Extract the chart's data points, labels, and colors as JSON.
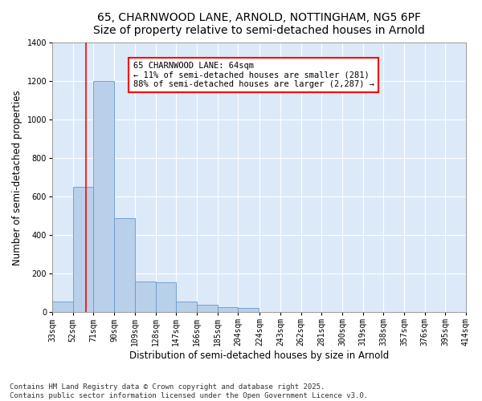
{
  "title_line1": "65, CHARNWOOD LANE, ARNOLD, NOTTINGHAM, NG5 6PF",
  "title_line2": "Size of property relative to semi-detached houses in Arnold",
  "xlabel": "Distribution of semi-detached houses by size in Arnold",
  "ylabel": "Number of semi-detached properties",
  "background_color": "#dce9f8",
  "bar_color": "#b8d0ea",
  "bar_edge_color": "#6699cc",
  "grid_color": "#ffffff",
  "bar_left_edges": [
    33,
    52,
    71,
    90,
    109,
    128,
    147,
    166,
    185,
    204,
    224,
    243,
    262,
    281,
    300,
    319,
    338,
    357,
    376,
    395
  ],
  "bar_heights": [
    55,
    650,
    1200,
    490,
    160,
    155,
    55,
    40,
    25,
    20,
    0,
    0,
    0,
    0,
    0,
    0,
    0,
    0,
    0,
    0
  ],
  "bin_width": 19,
  "x_tick_labels": [
    "33sqm",
    "52sqm",
    "71sqm",
    "90sqm",
    "109sqm",
    "128sqm",
    "147sqm",
    "166sqm",
    "185sqm",
    "204sqm",
    "224sqm",
    "243sqm",
    "262sqm",
    "281sqm",
    "300sqm",
    "319sqm",
    "338sqm",
    "357sqm",
    "376sqm",
    "395sqm",
    "414sqm"
  ],
  "x_tick_positions": [
    33,
    52,
    71,
    90,
    109,
    128,
    147,
    166,
    185,
    204,
    224,
    243,
    262,
    281,
    300,
    319,
    338,
    357,
    376,
    395,
    414
  ],
  "ylim": [
    0,
    1400
  ],
  "xlim": [
    33,
    414
  ],
  "red_line_x": 64,
  "annotation_title": "65 CHARNWOOD LANE: 64sqm",
  "annotation_line2": "← 11% of semi-detached houses are smaller (281)",
  "annotation_line3": "88% of semi-detached houses are larger (2,287) →",
  "footer_line1": "Contains HM Land Registry data © Crown copyright and database right 2025.",
  "footer_line2": "Contains public sector information licensed under the Open Government Licence v3.0.",
  "title_fontsize": 10,
  "axis_label_fontsize": 8.5,
  "tick_fontsize": 7,
  "footer_fontsize": 6.5,
  "annotation_fontsize": 7.5
}
